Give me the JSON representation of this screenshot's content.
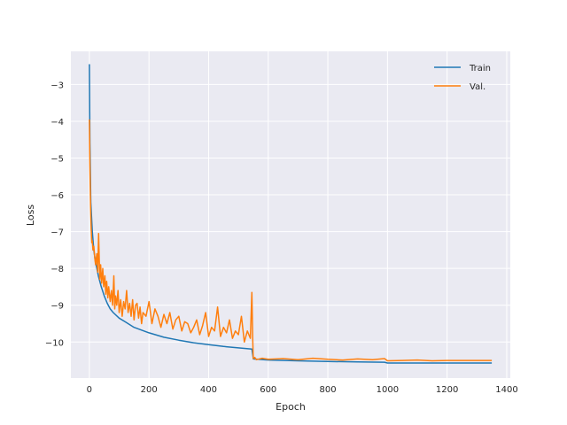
{
  "chart_data": {
    "type": "line",
    "title": "",
    "xlabel": "Epoch",
    "ylabel": "Loss",
    "xlim": [
      -62,
      1412
    ],
    "ylim": [
      -10.98,
      -2.1
    ],
    "xticks": [
      0,
      200,
      400,
      600,
      800,
      1000,
      1200,
      1400
    ],
    "xtick_labels": [
      "0",
      "200",
      "400",
      "600",
      "800",
      "1000",
      "1200",
      "1400"
    ],
    "yticks": [
      -3,
      -4,
      -5,
      -6,
      -7,
      -8,
      -9,
      -10
    ],
    "ytick_labels": [
      "−3",
      "−4",
      "−5",
      "−6",
      "−7",
      "−8",
      "−9",
      "−10"
    ],
    "grid": true,
    "legend_position": "top-right",
    "background": "#eaeaf2",
    "series": [
      {
        "name": "Train",
        "color": "#1f77b4",
        "x": [
          0,
          2,
          5,
          10,
          15,
          20,
          30,
          40,
          50,
          60,
          70,
          80,
          100,
          120,
          150,
          200,
          250,
          300,
          350,
          400,
          450,
          500,
          545,
          548,
          550,
          600,
          700,
          800,
          900,
          990,
          1000,
          1100,
          1200,
          1300,
          1350
        ],
        "y": [
          -2.45,
          -4.6,
          -6.2,
          -7.0,
          -7.5,
          -7.8,
          -8.2,
          -8.5,
          -8.75,
          -8.95,
          -9.1,
          -9.2,
          -9.35,
          -9.45,
          -9.6,
          -9.75,
          -9.87,
          -9.95,
          -10.02,
          -10.07,
          -10.12,
          -10.16,
          -10.19,
          -10.35,
          -10.46,
          -10.49,
          -10.51,
          -10.53,
          -10.54,
          -10.55,
          -10.57,
          -10.57,
          -10.57,
          -10.57,
          -10.57
        ]
      },
      {
        "name": "Val.",
        "color": "#ff7f0e",
        "x": [
          0,
          2,
          4,
          6,
          8,
          10,
          12,
          15,
          18,
          21,
          25,
          28,
          31,
          35,
          38,
          41,
          45,
          48,
          52,
          55,
          58,
          62,
          65,
          70,
          74,
          78,
          82,
          85,
          88,
          92,
          96,
          100,
          105,
          110,
          115,
          120,
          125,
          130,
          135,
          140,
          145,
          150,
          155,
          160,
          165,
          170,
          175,
          180,
          190,
          200,
          210,
          220,
          230,
          240,
          250,
          260,
          270,
          280,
          290,
          300,
          310,
          320,
          330,
          340,
          350,
          360,
          370,
          380,
          390,
          400,
          410,
          420,
          430,
          440,
          450,
          460,
          470,
          480,
          490,
          500,
          510,
          520,
          530,
          540,
          545,
          548,
          550,
          555,
          560,
          580,
          600,
          650,
          700,
          750,
          800,
          850,
          900,
          950,
          990,
          1000,
          1050,
          1100,
          1150,
          1200,
          1250,
          1300,
          1350
        ],
        "y": [
          -3.95,
          -5.2,
          -6.3,
          -6.9,
          -7.3,
          -7.25,
          -7.5,
          -7.4,
          -7.7,
          -7.9,
          -7.6,
          -8.1,
          -7.05,
          -8.3,
          -7.9,
          -8.4,
          -8.0,
          -8.5,
          -8.2,
          -8.7,
          -8.35,
          -8.8,
          -8.5,
          -8.9,
          -8.6,
          -9.0,
          -8.2,
          -9.1,
          -8.75,
          -9.0,
          -8.6,
          -9.2,
          -8.85,
          -9.3,
          -8.9,
          -9.1,
          -8.6,
          -9.2,
          -8.95,
          -9.3,
          -8.85,
          -9.4,
          -9.0,
          -8.95,
          -9.35,
          -9.05,
          -9.5,
          -9.2,
          -9.3,
          -8.9,
          -9.5,
          -9.1,
          -9.3,
          -9.6,
          -9.25,
          -9.5,
          -9.2,
          -9.65,
          -9.4,
          -9.3,
          -9.7,
          -9.45,
          -9.5,
          -9.75,
          -9.6,
          -9.4,
          -9.8,
          -9.55,
          -9.2,
          -9.85,
          -9.6,
          -9.7,
          -9.05,
          -9.85,
          -9.6,
          -9.75,
          -9.4,
          -9.9,
          -9.7,
          -9.8,
          -9.3,
          -10.0,
          -9.7,
          -9.9,
          -8.65,
          -9.95,
          -10.45,
          -10.42,
          -10.48,
          -10.44,
          -10.47,
          -10.45,
          -10.48,
          -10.44,
          -10.47,
          -10.49,
          -10.46,
          -10.48,
          -10.45,
          -10.51,
          -10.5,
          -10.49,
          -10.51,
          -10.5,
          -10.5,
          -10.5,
          -10.5
        ]
      }
    ]
  }
}
